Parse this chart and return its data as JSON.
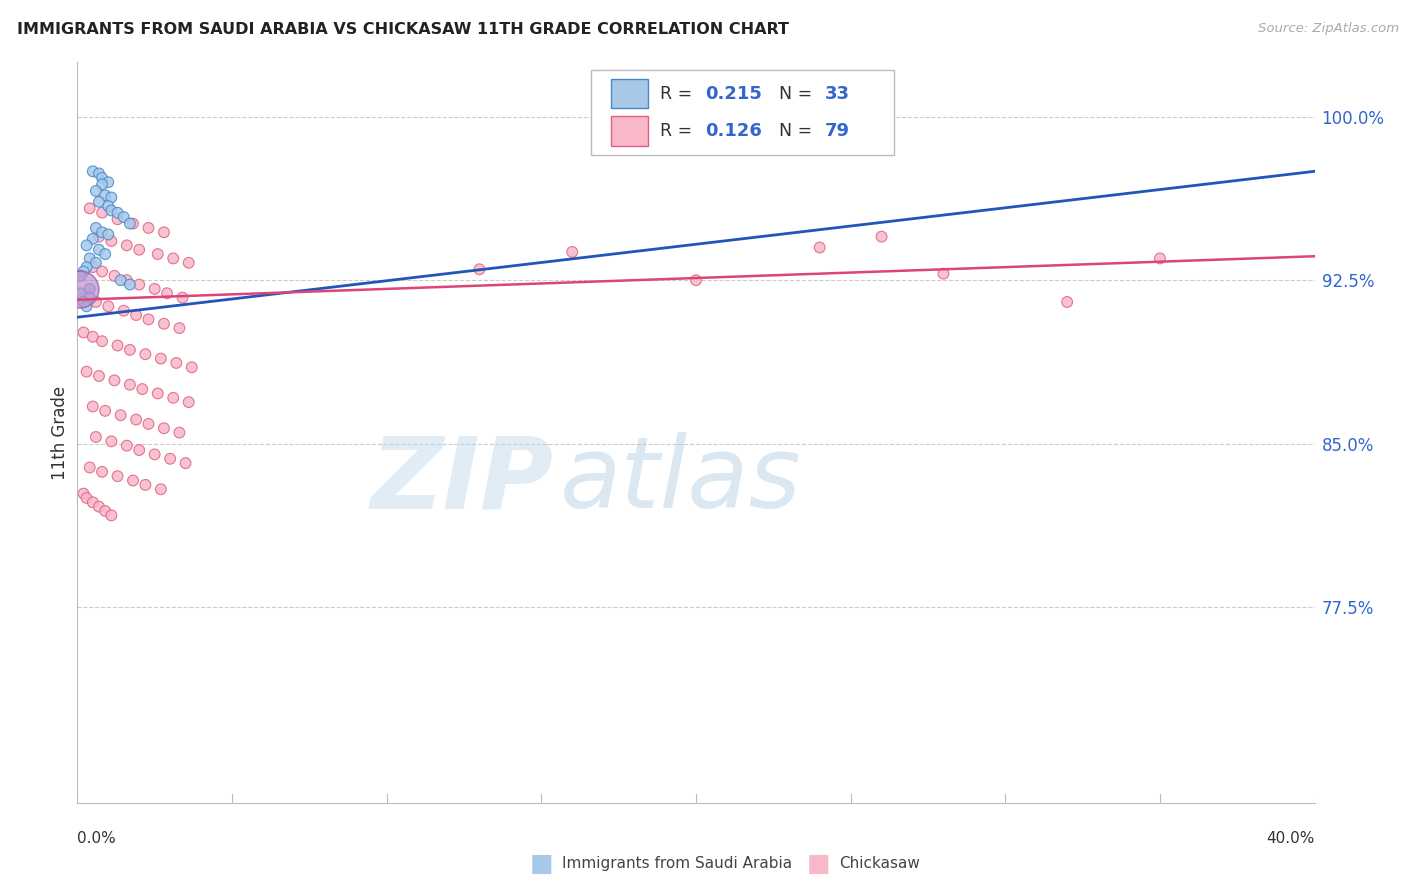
{
  "title": "IMMIGRANTS FROM SAUDI ARABIA VS CHICKASAW 11TH GRADE CORRELATION CHART",
  "source": "Source: ZipAtlas.com",
  "ylabel": "11th Grade",
  "ytick_labels": [
    "100.0%",
    "92.5%",
    "85.0%",
    "77.5%"
  ],
  "ytick_values": [
    1.0,
    0.925,
    0.85,
    0.775
  ],
  "xmin": 0.0,
  "xmax": 0.4,
  "ymin": 0.685,
  "ymax": 1.025,
  "blue_color": "#a8c8e8",
  "blue_edge": "#4488cc",
  "pink_color": "#f8b8c8",
  "pink_edge": "#e06080",
  "trendline_blue": "#2255bb",
  "trendline_pink": "#dd4477",
  "blue_r": "0.215",
  "blue_n": "33",
  "pink_r": "0.126",
  "pink_n": "79",
  "legend_blue_label": "Immigrants from Saudi Arabia",
  "legend_pink_label": "Chickasaw",
  "watermark_zip": "ZIP",
  "watermark_atlas": "atlas",
  "grid_color": "#cccccc",
  "trendline_blue_x0": 0.0,
  "trendline_blue_x1": 0.4,
  "trendline_blue_y0": 0.908,
  "trendline_blue_y1": 0.975,
  "trendline_pink_x0": 0.0,
  "trendline_pink_x1": 0.4,
  "trendline_pink_y0": 0.916,
  "trendline_pink_y1": 0.936,
  "blue_x": [
    0.005,
    0.007,
    0.009,
    0.011,
    0.008,
    0.006,
    0.01,
    0.012,
    0.008,
    0.01,
    0.012,
    0.014,
    0.016,
    0.018,
    0.007,
    0.009,
    0.011,
    0.006,
    0.004,
    0.008,
    0.01,
    0.005,
    0.007,
    0.003,
    0.002,
    0.001,
    0.015,
    0.018,
    0.004,
    0.001,
    0.005,
    0.002,
    0.003
  ],
  "blue_y": [
    0.975,
    0.973,
    0.971,
    0.97,
    0.968,
    0.965,
    0.963,
    0.962,
    0.96,
    0.958,
    0.956,
    0.955,
    0.953,
    0.95,
    0.948,
    0.946,
    0.945,
    0.943,
    0.94,
    0.938,
    0.936,
    0.934,
    0.932,
    0.93,
    0.928,
    0.926,
    0.924,
    0.922,
    0.92,
    0.918,
    0.916,
    0.914,
    0.912
  ],
  "blue_sizes": [
    60,
    60,
    60,
    60,
    60,
    60,
    60,
    60,
    60,
    60,
    60,
    60,
    60,
    60,
    60,
    60,
    60,
    60,
    60,
    60,
    60,
    60,
    60,
    60,
    60,
    60,
    60,
    60,
    60,
    60,
    60,
    60,
    60
  ],
  "pink_x": [
    0.005,
    0.01,
    0.015,
    0.02,
    0.025,
    0.03,
    0.008,
    0.012,
    0.018,
    0.022,
    0.028,
    0.033,
    0.038,
    0.005,
    0.009,
    0.013,
    0.017,
    0.021,
    0.026,
    0.031,
    0.036,
    0.007,
    0.011,
    0.016,
    0.02,
    0.025,
    0.03,
    0.035,
    0.003,
    0.006,
    0.009,
    0.014,
    0.019,
    0.024,
    0.029,
    0.034,
    0.039,
    0.004,
    0.008,
    0.013,
    0.018,
    0.023,
    0.028,
    0.033,
    0.038,
    0.006,
    0.01,
    0.015,
    0.02,
    0.025,
    0.03,
    0.035,
    0.007,
    0.012,
    0.017,
    0.022,
    0.027,
    0.032,
    0.037,
    0.005,
    0.009,
    0.014,
    0.019,
    0.024,
    0.029,
    0.002,
    0.004,
    0.006,
    0.008,
    0.01,
    0.012,
    0.35,
    0.26,
    0.16,
    0.13,
    0.2,
    0.24,
    0.28,
    0.32
  ],
  "pink_y": [
    0.96,
    0.958,
    0.956,
    0.954,
    0.952,
    0.95,
    0.948,
    0.946,
    0.944,
    0.942,
    0.94,
    0.938,
    0.936,
    0.934,
    0.932,
    0.93,
    0.928,
    0.926,
    0.924,
    0.922,
    0.92,
    0.918,
    0.916,
    0.914,
    0.912,
    0.91,
    0.908,
    0.906,
    0.904,
    0.902,
    0.9,
    0.898,
    0.896,
    0.894,
    0.892,
    0.89,
    0.888,
    0.886,
    0.884,
    0.882,
    0.88,
    0.878,
    0.876,
    0.874,
    0.872,
    0.87,
    0.868,
    0.866,
    0.864,
    0.862,
    0.86,
    0.858,
    0.856,
    0.854,
    0.852,
    0.85,
    0.848,
    0.846,
    0.844,
    0.842,
    0.84,
    0.838,
    0.836,
    0.834,
    0.832,
    0.83,
    0.828,
    0.826,
    0.824,
    0.822,
    0.82,
    0.935,
    0.945,
    0.938,
    0.93,
    0.925,
    0.94,
    0.928,
    0.915
  ],
  "pink_sizes": [
    60,
    60,
    60,
    60,
    60,
    60,
    60,
    60,
    60,
    60,
    60,
    60,
    60,
    60,
    60,
    60,
    60,
    60,
    60,
    60,
    60,
    60,
    60,
    60,
    60,
    60,
    60,
    60,
    60,
    60,
    60,
    60,
    60,
    60,
    60,
    60,
    60,
    60,
    60,
    60,
    60,
    60,
    60,
    60,
    60,
    60,
    60,
    60,
    60,
    60,
    60,
    60,
    60,
    60,
    60,
    60,
    60,
    60,
    60,
    60,
    60,
    60,
    60,
    60,
    60,
    60,
    60,
    60,
    60,
    60,
    60,
    60,
    60,
    60,
    60,
    60,
    60,
    60,
    60
  ]
}
